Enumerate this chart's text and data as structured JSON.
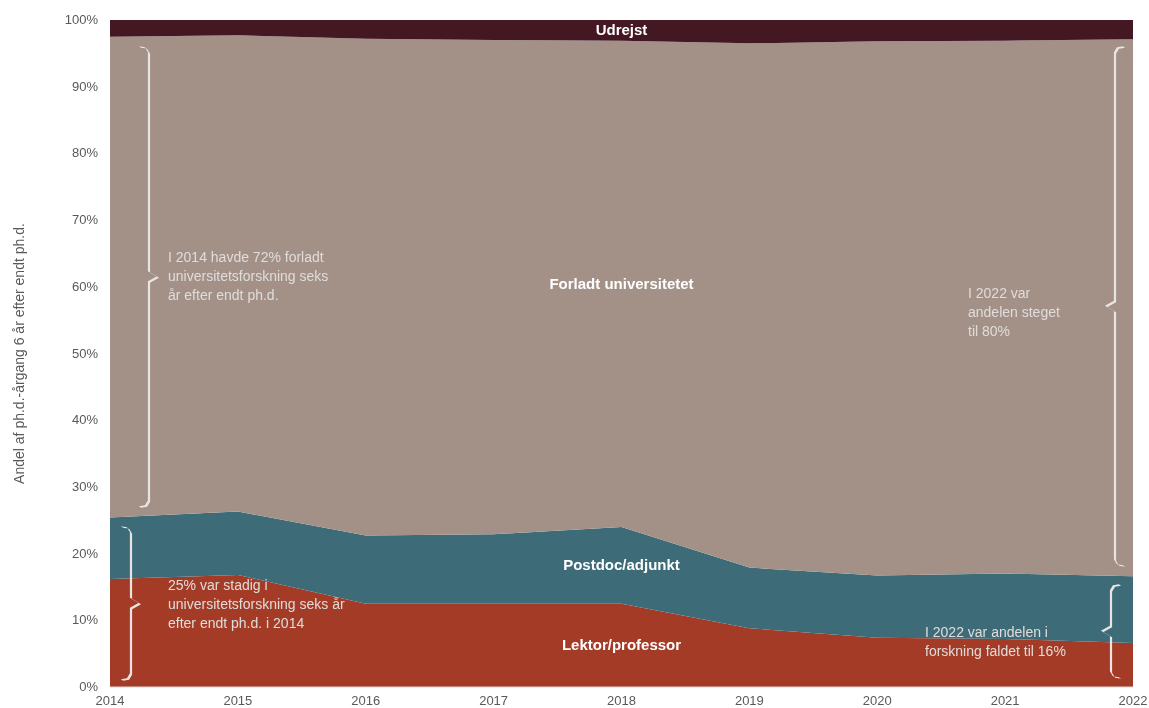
{
  "chart_data": {
    "type": "area",
    "stacked": true,
    "ylabel": "Andel af ph.d.-årgang 6 år efter endt ph.d.",
    "x": [
      2014,
      2015,
      2016,
      2017,
      2018,
      2019,
      2020,
      2021,
      2022
    ],
    "xlim": [
      2014,
      2022
    ],
    "xticks": [
      2014,
      2015,
      2016,
      2017,
      2018,
      2019,
      2020,
      2021,
      2022
    ],
    "ylim": [
      0,
      100
    ],
    "yticks": [
      {
        "value": 0,
        "label": "0%"
      },
      {
        "value": 10,
        "label": "10%"
      },
      {
        "value": 20,
        "label": "20%"
      },
      {
        "value": 30,
        "label": "30%"
      },
      {
        "value": 40,
        "label": "40%"
      },
      {
        "value": 50,
        "label": "50%"
      },
      {
        "value": 60,
        "label": "60%"
      },
      {
        "value": 70,
        "label": "70%"
      },
      {
        "value": 80,
        "label": "80%"
      },
      {
        "value": 90,
        "label": "90%"
      },
      {
        "value": 100,
        "label": "100%"
      }
    ],
    "series": [
      {
        "name": "Lektor/professor",
        "color": "#a33b27",
        "values": [
          16.2,
          16.8,
          12.5,
          12.5,
          12.5,
          8.8,
          7.4,
          7.2,
          6.6
        ]
      },
      {
        "name": "Postdoc/adjunkt",
        "color": "#3d6b78",
        "values": [
          9.2,
          9.5,
          10.2,
          10.4,
          11.5,
          9.1,
          9.3,
          9.8,
          10.0
        ]
      },
      {
        "name": "Forladt universitetet",
        "color": "#a39188",
        "values": [
          72.1,
          71.4,
          74.5,
          74.1,
          72.9,
          78.6,
          80.1,
          79.9,
          80.5
        ]
      },
      {
        "name": "Udrejst",
        "color": "#431822",
        "values": [
          2.5,
          2.3,
          2.8,
          3.0,
          3.1,
          3.5,
          3.2,
          3.1,
          2.9
        ]
      }
    ],
    "annotations": [
      "I 2014 havde 72% forladt universitetsforskning seks år efter endt ph.d.",
      "25% var stadig i universitetsforskning seks år efter endt ph.d. i 2014",
      "I 2022 var andelen steget til 80%",
      "I 2022 var andelen i forskning faldet til 16%"
    ]
  }
}
